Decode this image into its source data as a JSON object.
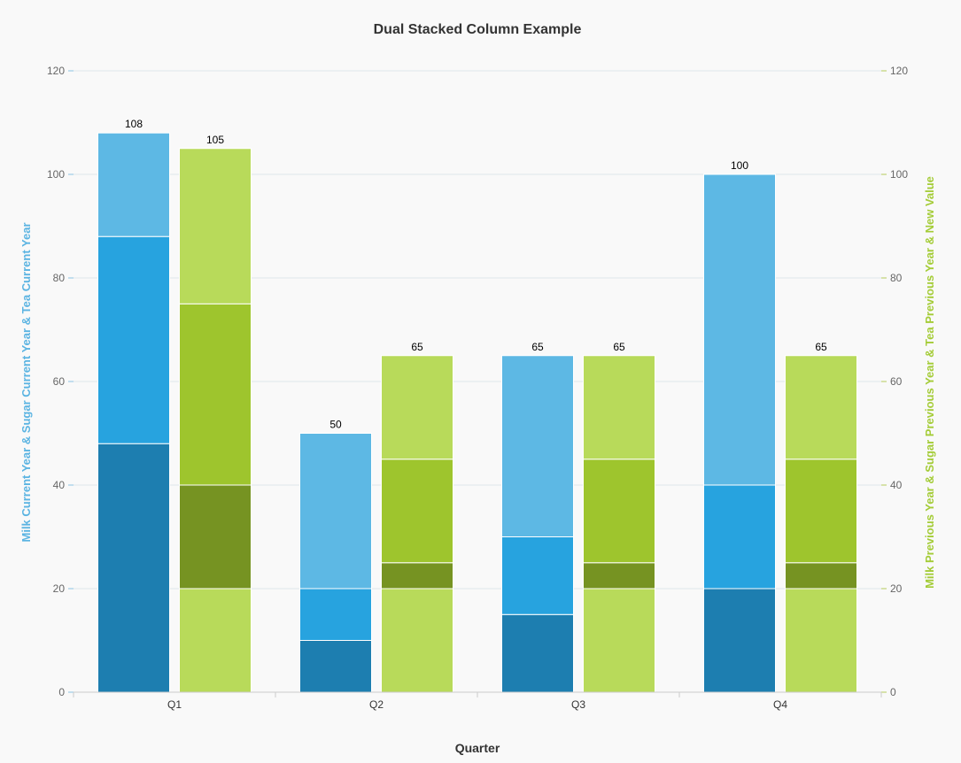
{
  "chart_data": {
    "type": "bar",
    "stacked": true,
    "title": "Dual Stacked Column Example",
    "xlabel": "Quarter",
    "ylabel_left": "Milk Current Year & Sugar Current Year & Tea Current Year",
    "ylabel_right": "Milk Previous Year & Sugar Previous Year & Tea Previous Year & New Value",
    "ylim": [
      0,
      120
    ],
    "yticks": [
      0,
      20,
      40,
      60,
      80,
      100,
      120
    ],
    "categories": [
      "Q1",
      "Q2",
      "Q3",
      "Q4"
    ],
    "grid": true,
    "stacks": [
      {
        "axis": "left",
        "color_title": "#5bb4e2",
        "series": [
          {
            "values": [
              48,
              10,
              15,
              20
            ],
            "color": "#1d7eb0"
          },
          {
            "values": [
              40,
              10,
              15,
              20
            ],
            "color": "#27a3df"
          },
          {
            "values": [
              20,
              30,
              35,
              60
            ],
            "color": "#5db8e4"
          }
        ],
        "totals": [
          108,
          50,
          65,
          100
        ]
      },
      {
        "axis": "right",
        "color_title": "#a4cc37",
        "series": [
          {
            "values": [
              20,
              20,
              20,
              20
            ],
            "color": "#b8da5a"
          },
          {
            "values": [
              20,
              5,
              5,
              5
            ],
            "color": "#769322"
          },
          {
            "values": [
              35,
              20,
              20,
              20
            ],
            "color": "#9ec52d"
          },
          {
            "values": [
              30,
              20,
              20,
              20
            ],
            "color": "#b8da5a"
          }
        ],
        "totals": [
          105,
          65,
          65,
          65
        ]
      }
    ]
  },
  "colors": {
    "background": "#f9f9f9",
    "grid": "#e0e6ec",
    "left_axis_tick": "#8cc4e4",
    "right_axis_tick": "#b5cc5c",
    "baseline": "#cccccc"
  }
}
